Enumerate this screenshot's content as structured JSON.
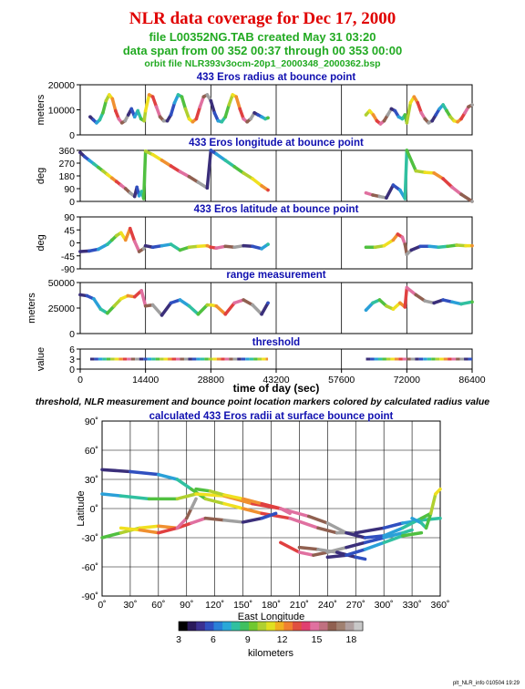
{
  "header": {
    "title": "NLR data coverage for Dec 17, 2000",
    "line1": "file L00352NG.TAB created May 31 03:20",
    "line2": "data span from 00 352 00:37 through 00 353 00:00",
    "line3": "orbit file NLR393v3ocm-20p1_2000348_2000362.bsp"
  },
  "caption": "threshold, NLR measurement and bounce point location markers colored by calculated radius value",
  "footer_id": "plt_NLR_info 010504 19:29",
  "colors": {
    "title": "#e00000",
    "subtitle": "#22aa22",
    "panel_title": "#1010b0"
  },
  "chart_data": [
    {
      "type": "scatter",
      "title": "433 Eros radius at bounce point",
      "ylabel": "meters",
      "ylim": [
        0,
        25000
      ],
      "yticks": [
        "0",
        "10000",
        "20000"
      ],
      "x": [
        2200,
        2900,
        3600,
        4300,
        5000,
        5700,
        6400,
        7100,
        7800,
        8500,
        9200,
        9900,
        10600,
        11300,
        12000,
        12700,
        13400,
        14100,
        14400,
        15200,
        16000,
        16800,
        17600,
        18400,
        19200,
        20000,
        20800,
        21600,
        22400,
        23200,
        24000,
        24800,
        25600,
        26400,
        27200,
        28000,
        28800,
        29600,
        30400,
        31200,
        32000,
        32800,
        33600,
        34400,
        35200,
        36000,
        36800,
        37600,
        38400,
        39200,
        40000,
        40800,
        41400,
        63000,
        63800,
        64600,
        65400,
        66200,
        67000,
        67800,
        68600,
        69400,
        70200,
        71000,
        71600,
        72000,
        72800,
        73600,
        74400,
        75200,
        76000,
        76800,
        77600,
        78400,
        79200,
        80000,
        80800,
        81600,
        82400,
        83200,
        84000,
        84800,
        85600,
        86400
      ],
      "y": [
        9000,
        7500,
        6000,
        7500,
        11000,
        17000,
        20000,
        18000,
        12000,
        8000,
        6000,
        7000,
        10000,
        13000,
        9000,
        12000,
        8000,
        7000,
        12000,
        20000,
        19000,
        14000,
        9000,
        7000,
        7000,
        10000,
        16000,
        20000,
        19000,
        13000,
        8000,
        6500,
        8000,
        14000,
        19000,
        20000,
        17000,
        11000,
        7000,
        6500,
        9000,
        15000,
        20000,
        19000,
        13000,
        8000,
        6500,
        8000,
        11000,
        10000,
        9000,
        8000,
        8500,
        10000,
        12000,
        10000,
        7000,
        5500,
        7000,
        10000,
        13000,
        12000,
        9000,
        8000,
        10000,
        6000,
        16000,
        19000,
        16000,
        11000,
        8000,
        6000,
        7000,
        10000,
        13000,
        15000,
        12000,
        9000,
        7000,
        6500,
        8000,
        11000,
        14000,
        15000
      ],
      "grid": true
    },
    {
      "type": "scatter",
      "title": "433 Eros longitude at bounce point",
      "ylabel": "deg",
      "ylim": [
        0,
        360
      ],
      "yticks": [
        "0",
        "90",
        "180",
        "270",
        "360"
      ],
      "x": [
        0,
        1000,
        2000,
        3000,
        4000,
        5000,
        6000,
        7000,
        8000,
        9000,
        10000,
        11000,
        12000,
        12500,
        13000,
        13500,
        14000,
        14400,
        16000,
        18000,
        20000,
        22000,
        24000,
        26000,
        28000,
        28800,
        30000,
        32000,
        34000,
        36000,
        38000,
        40000,
        41400,
        63000,
        64500,
        66000,
        67500,
        69000,
        70500,
        71600,
        72000,
        74000,
        76000,
        78000,
        80000,
        82000,
        84000,
        86400
      ],
      "y": [
        345,
        315,
        290,
        265,
        240,
        215,
        190,
        165,
        140,
        115,
        90,
        60,
        35,
        100,
        40,
        70,
        20,
        355,
        330,
        290,
        250,
        210,
        175,
        135,
        95,
        360,
        335,
        290,
        245,
        200,
        160,
        110,
        80,
        60,
        45,
        35,
        25,
        115,
        80,
        20,
        360,
        215,
        205,
        200,
        160,
        100,
        50,
        0
      ],
      "grid": true
    },
    {
      "type": "scatter",
      "title": "433 Eros latitude at bounce point",
      "ylabel": "deg",
      "ylim": [
        -90,
        90
      ],
      "yticks": [
        "-90",
        "-45",
        "0",
        "45",
        "90"
      ],
      "x": [
        0,
        2000,
        4000,
        6000,
        7000,
        8000,
        9000,
        10000,
        11000,
        12000,
        13000,
        14000,
        14400,
        16000,
        18000,
        20000,
        22000,
        24000,
        26000,
        28000,
        28800,
        30000,
        32000,
        34000,
        36000,
        38000,
        40000,
        41400,
        63000,
        65000,
        67000,
        69000,
        70000,
        71000,
        71600,
        72000,
        73000,
        75000,
        77000,
        79000,
        81000,
        83000,
        85000,
        86400
      ],
      "y": [
        -30,
        -28,
        -22,
        -5,
        10,
        25,
        35,
        10,
        50,
        5,
        -30,
        -20,
        -10,
        -15,
        -10,
        -5,
        -25,
        -15,
        -12,
        -10,
        -15,
        -18,
        -12,
        -15,
        -10,
        -12,
        -20,
        -5,
        -15,
        -15,
        -10,
        10,
        30,
        20,
        -5,
        -40,
        -25,
        -12,
        -12,
        -15,
        -12,
        -8,
        -10,
        -10
      ],
      "grid": true
    },
    {
      "type": "scatter",
      "title": "range measurement",
      "ylabel": "meters",
      "ylim": [
        0,
        50000
      ],
      "yticks": [
        "0",
        "25000",
        "50000"
      ],
      "x": [
        0,
        1500,
        3000,
        4500,
        6000,
        7500,
        9000,
        10500,
        12000,
        13500,
        14400,
        16000,
        18000,
        20000,
        22000,
        24000,
        26000,
        28000,
        28800,
        30000,
        32000,
        34000,
        36000,
        38000,
        40000,
        41400,
        63000,
        64500,
        66000,
        67500,
        69000,
        70500,
        71600,
        72000,
        74000,
        76000,
        78000,
        80000,
        82000,
        84000,
        86400
      ],
      "y": [
        38000,
        37000,
        34000,
        24000,
        20000,
        27000,
        34000,
        37000,
        36000,
        42000,
        27000,
        28000,
        18000,
        30000,
        33000,
        27000,
        19000,
        28000,
        28000,
        27000,
        19000,
        30000,
        33000,
        28000,
        19000,
        30000,
        23000,
        30000,
        33000,
        27000,
        24000,
        30000,
        26000,
        45000,
        38000,
        32000,
        30000,
        33000,
        31000,
        29000,
        31000
      ],
      "grid": true
    },
    {
      "type": "scatter",
      "title": "threshold",
      "ylabel": "value",
      "ylim": [
        0,
        6
      ],
      "yticks": [
        "0",
        "3",
        "6"
      ],
      "segments": [
        [
          2200,
          41400
        ],
        [
          63000,
          86400
        ]
      ],
      "value": 3,
      "grid": true
    }
  ],
  "x_axis": {
    "label": "time of day (sec)",
    "xlim": [
      0,
      86400
    ],
    "ticks": [
      "0",
      "14400",
      "28800",
      "43200",
      "57600",
      "72000",
      "86400"
    ]
  },
  "map": {
    "title": "calculated 433 Eros radii at surface bounce point",
    "xlabel": "East Longitude",
    "ylabel": "Latitude",
    "xlim": [
      0,
      360
    ],
    "ylim": [
      -90,
      90
    ],
    "xticks": [
      "0˚",
      "30˚",
      "60˚",
      "90˚",
      "120˚",
      "150˚",
      "180˚",
      "210˚",
      "240˚",
      "270˚",
      "300˚",
      "330˚",
      "360˚"
    ],
    "yticks": [
      "-90˚",
      "-60˚",
      "-30˚",
      "0˚",
      "30˚",
      "60˚",
      "90˚"
    ],
    "tracks": [
      {
        "lon": [
          0,
          30,
          60,
          80,
          95,
          110,
          130,
          150,
          170,
          200,
          230,
          250,
          270,
          300,
          320,
          340,
          360
        ],
        "lat": [
          40,
          38,
          35,
          30,
          20,
          10,
          5,
          0,
          -5,
          -10,
          -20,
          -25,
          -25,
          -20,
          -15,
          -12,
          -10
        ]
      },
      {
        "lon": [
          0,
          20,
          50,
          80,
          100,
          130,
          160,
          190,
          220,
          240,
          260,
          280,
          300,
          320,
          340,
          350
        ],
        "lat": [
          15,
          13,
          10,
          10,
          15,
          13,
          5,
          0,
          -8,
          -15,
          -25,
          -30,
          -28,
          -20,
          -10,
          -5
        ]
      },
      {
        "lon": [
          0,
          20,
          40,
          60,
          80,
          95,
          110,
          130,
          150,
          170,
          185
        ],
        "lat": [
          -30,
          -25,
          -20,
          -18,
          -20,
          -15,
          -10,
          -12,
          -14,
          -10,
          -5
        ]
      },
      {
        "lon": [
          20,
          40,
          60,
          80,
          90,
          95,
          100
        ],
        "lat": [
          -20,
          -22,
          -25,
          -20,
          -10,
          0,
          10
        ]
      },
      {
        "lon": [
          190,
          210,
          225,
          240,
          260,
          280,
          300,
          320,
          330
        ],
        "lat": [
          -35,
          -45,
          -48,
          -45,
          -40,
          -35,
          -30,
          -25,
          -22
        ]
      },
      {
        "lon": [
          210,
          230,
          250,
          270,
          280
        ],
        "lat": [
          -40,
          -42,
          -45,
          -50,
          -52
        ]
      },
      {
        "lon": [
          240,
          260,
          280,
          300,
          320,
          340
        ],
        "lat": [
          -50,
          -48,
          -42,
          -35,
          -28,
          -25
        ]
      },
      {
        "lon": [
          330,
          340,
          345,
          350,
          355,
          360
        ],
        "lat": [
          -10,
          -15,
          -20,
          -5,
          15,
          20
        ]
      },
      {
        "lon": [
          100,
          115,
          130,
          150,
          170,
          190,
          200
        ],
        "lat": [
          20,
          18,
          14,
          10,
          5,
          0,
          -5
        ]
      }
    ]
  },
  "colorbar": {
    "label": "kilometers",
    "ticks": [
      "3",
      "6",
      "9",
      "12",
      "15",
      "18"
    ],
    "range": [
      3,
      19
    ]
  }
}
